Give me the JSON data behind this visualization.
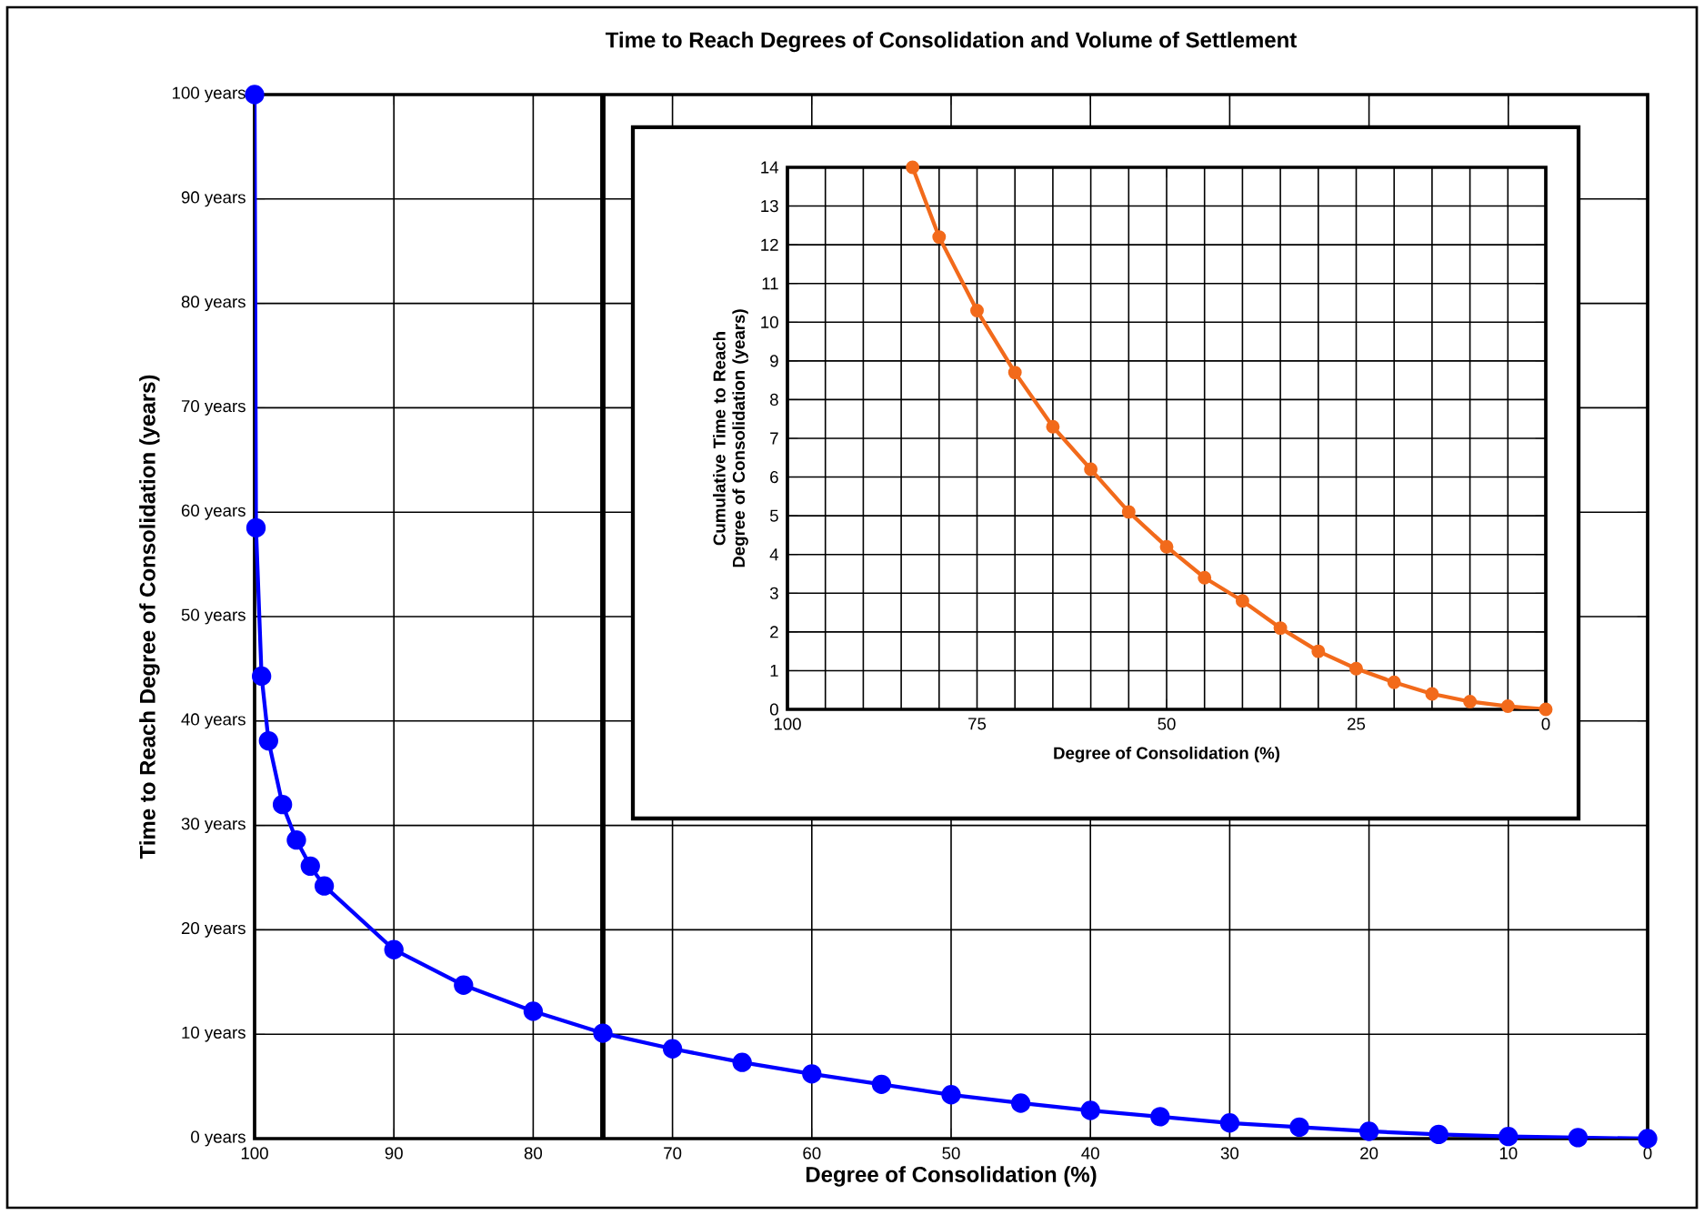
{
  "chart_data": [
    {
      "type": "line",
      "title": "Time to Reach Degrees of Consolidation and Volume of Settlement",
      "xlabel": "Degree of Consolidation (%)",
      "ylabel": "Time to Reach Degree of Consolidation (years)",
      "x": [
        100,
        99.9,
        99.5,
        99,
        98,
        97,
        96,
        95,
        90,
        85,
        80,
        75,
        70,
        65,
        60,
        55,
        50,
        45,
        40,
        35,
        30,
        25,
        20,
        15,
        10,
        5,
        0
      ],
      "series": [
        {
          "color": "#0000ff",
          "values": [
            100,
            58.5,
            44.3,
            38.1,
            32.0,
            28.6,
            26.1,
            24.2,
            18.1,
            14.7,
            12.2,
            10.1,
            8.6,
            7.3,
            6.2,
            5.2,
            4.2,
            3.4,
            2.7,
            2.1,
            1.5,
            1.1,
            0.7,
            0.4,
            0.2,
            0.1,
            0
          ]
        }
      ],
      "xlim": [
        100,
        0
      ],
      "ylim": [
        0,
        100
      ],
      "xticks": [
        100,
        90,
        80,
        70,
        60,
        50,
        40,
        30,
        20,
        10,
        0
      ],
      "yticks": [
        {
          "value": 0,
          "label": "0 years"
        },
        {
          "value": 10,
          "label": "10 years"
        },
        {
          "value": 20,
          "label": "20 years"
        },
        {
          "value": 30,
          "label": "30 years"
        },
        {
          "value": 40,
          "label": "40 years"
        },
        {
          "value": 50,
          "label": "50 years"
        },
        {
          "value": 60,
          "label": "60 years"
        },
        {
          "value": 70,
          "label": "70 years"
        },
        {
          "value": 80,
          "label": "80 years"
        },
        {
          "value": 90,
          "label": "90 years"
        },
        {
          "value": 100,
          "label": "100 years"
        }
      ],
      "ref_lines": [
        {
          "axis": "x",
          "value": 75,
          "color": "#000000"
        }
      ],
      "grid": true,
      "marker": "circle",
      "line_style": "solid"
    },
    {
      "type": "line",
      "xlabel": "Degree of Consolidation (%)",
      "ylabel": "Cumulative Time to Reach Degree of Consolidation (years)",
      "x": [
        83.5,
        80,
        75,
        70,
        65,
        60,
        55,
        50,
        45,
        40,
        35,
        30,
        25,
        20,
        15,
        10,
        5,
        0
      ],
      "series": [
        {
          "color": "#f26a1b",
          "values": [
            14,
            12.2,
            10.3,
            8.7,
            7.3,
            6.2,
            5.1,
            4.2,
            3.4,
            2.8,
            2.1,
            1.5,
            1.05,
            0.7,
            0.4,
            0.2,
            0.08,
            0
          ]
        }
      ],
      "xlim": [
        100,
        0
      ],
      "ylim": [
        0,
        14
      ],
      "xticks": [
        100,
        75,
        50,
        25,
        0
      ],
      "yticks": [
        0,
        1,
        2,
        3,
        4,
        5,
        6,
        7,
        8,
        9,
        10,
        11,
        12,
        13,
        14
      ],
      "grid": true,
      "marker": "circle",
      "line_style": "solid"
    }
  ]
}
